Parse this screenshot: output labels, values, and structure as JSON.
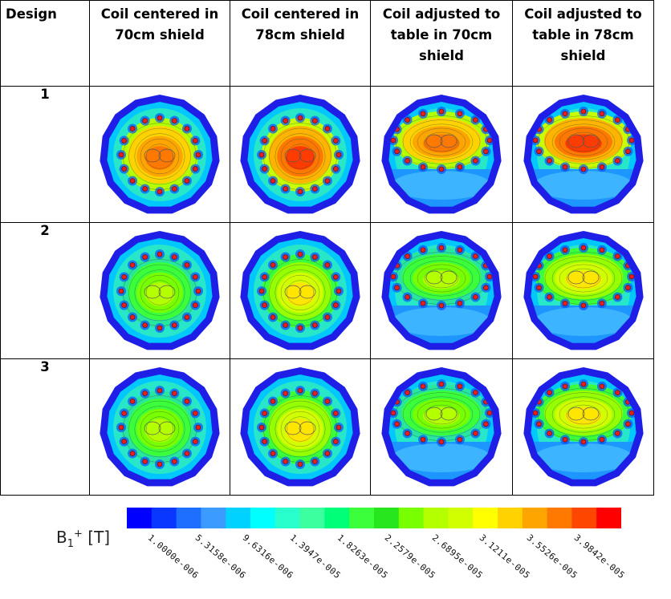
{
  "table": {
    "headers": [
      "Design",
      "Coil centered in 70cm shield",
      "Coil centered in 78cm shield",
      "Coil adjusted to table in 70cm shield",
      "Coil adjusted to table in 78cm shield"
    ],
    "rows": [
      {
        "design": "1",
        "plots": [
          {
            "layout": "centered",
            "peak": "orange"
          },
          {
            "layout": "centered",
            "peak": "red"
          },
          {
            "layout": "adjusted",
            "peak": "orange"
          },
          {
            "layout": "adjusted",
            "peak": "red"
          }
        ]
      },
      {
        "design": "2",
        "plots": [
          {
            "layout": "centered",
            "peak": "green"
          },
          {
            "layout": "centered",
            "peak": "yellow"
          },
          {
            "layout": "adjusted",
            "peak": "green"
          },
          {
            "layout": "adjusted",
            "peak": "yellow"
          }
        ]
      },
      {
        "design": "3",
        "plots": [
          {
            "layout": "centered",
            "peak": "green"
          },
          {
            "layout": "centered",
            "peak": "yellow"
          },
          {
            "layout": "adjusted",
            "peak": "green"
          },
          {
            "layout": "adjusted",
            "peak": "yellow"
          }
        ]
      }
    ]
  },
  "legend": {
    "label_main": "B",
    "label_sub": "1",
    "label_sup": "+",
    "label_unit": " [T]",
    "ticks": [
      "1.0000e-006",
      "5.3158e-006",
      "9.6316e-006",
      "1.3947e-005",
      "1.8263e-005",
      "2.2579e-005",
      "2.6895e-005",
      "3.1211e-005",
      "3.5526e-005",
      "3.9842e-005"
    ],
    "colors": [
      "#0000ff",
      "#0a37ff",
      "#1e6eff",
      "#3c9bff",
      "#00d2ff",
      "#00ffff",
      "#28ffcc",
      "#3cffa0",
      "#00ff78",
      "#3cff3c",
      "#28e61e",
      "#78ff00",
      "#b4ff00",
      "#d2ff00",
      "#ffff00",
      "#ffd200",
      "#ffa500",
      "#ff7800",
      "#ff4600",
      "#ff0000"
    ]
  }
}
